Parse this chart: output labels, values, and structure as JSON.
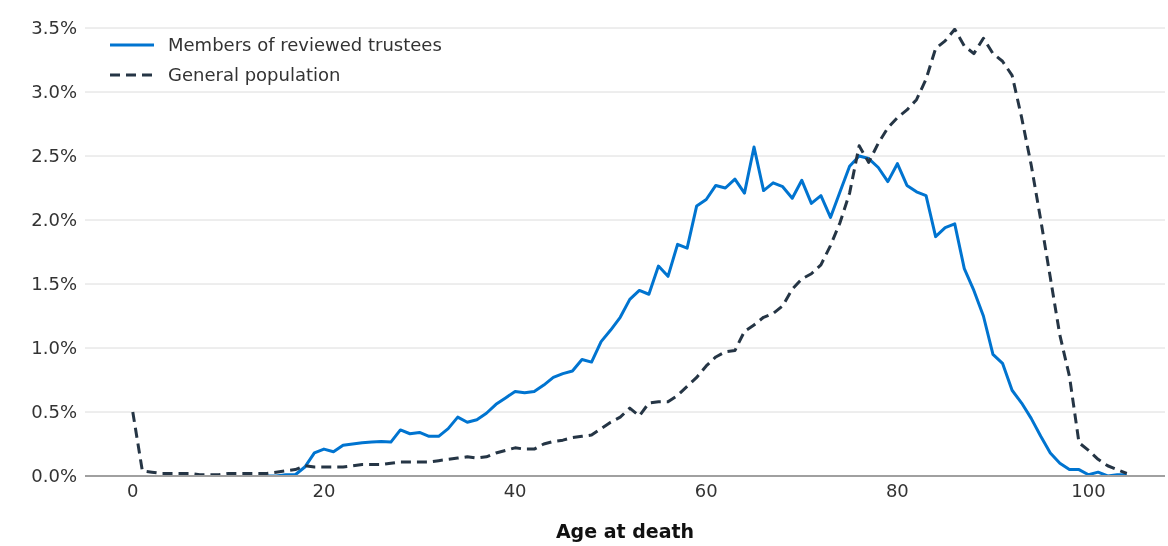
{
  "chart_data": {
    "type": "line",
    "xlabel": "Age at death",
    "x": [
      0,
      1,
      2,
      3,
      4,
      5,
      6,
      7,
      8,
      9,
      10,
      11,
      12,
      13,
      14,
      15,
      16,
      17,
      18,
      19,
      20,
      21,
      22,
      23,
      24,
      25,
      26,
      27,
      28,
      29,
      30,
      31,
      32,
      33,
      34,
      35,
      36,
      37,
      38,
      39,
      40,
      41,
      42,
      43,
      44,
      45,
      46,
      47,
      48,
      49,
      50,
      51,
      52,
      53,
      54,
      55,
      56,
      57,
      58,
      59,
      60,
      61,
      62,
      63,
      64,
      65,
      66,
      67,
      68,
      69,
      70,
      71,
      72,
      73,
      74,
      75,
      76,
      77,
      78,
      79,
      80,
      81,
      82,
      83,
      84,
      85,
      86,
      87,
      88,
      89,
      90,
      91,
      92,
      93,
      94,
      95,
      96,
      97,
      98,
      99,
      100,
      101,
      102,
      103,
      104
    ],
    "series": [
      {
        "name": "Members of reviewed trustees",
        "color": "#0074d0",
        "line_style": "solid",
        "values": [
          null,
          null,
          null,
          null,
          null,
          null,
          null,
          null,
          null,
          null,
          null,
          null,
          null,
          null,
          0.0,
          0.0,
          0.01,
          0.01,
          0.07,
          0.18,
          0.21,
          0.19,
          0.24,
          0.25,
          0.26,
          0.265,
          0.27,
          0.265,
          0.36,
          0.33,
          0.34,
          0.31,
          0.31,
          0.37,
          0.46,
          0.42,
          0.44,
          0.49,
          0.56,
          0.61,
          0.66,
          0.65,
          0.66,
          0.71,
          0.77,
          0.8,
          0.82,
          0.91,
          0.89,
          1.05,
          1.14,
          1.24,
          1.38,
          1.45,
          1.42,
          1.64,
          1.56,
          1.81,
          1.78,
          2.11,
          2.16,
          2.27,
          2.25,
          2.32,
          2.21,
          2.57,
          2.23,
          2.29,
          2.26,
          2.17,
          2.31,
          2.13,
          2.19,
          2.02,
          2.22,
          2.42,
          2.5,
          2.48,
          2.41,
          2.3,
          2.44,
          2.27,
          2.22,
          2.19,
          1.87,
          1.94,
          1.97,
          1.62,
          1.45,
          1.25,
          0.95,
          0.88,
          0.67,
          0.57,
          0.45,
          0.31,
          0.18,
          0.1,
          0.05,
          0.05,
          0.01,
          0.03,
          0.0,
          0.01,
          0.01
        ]
      },
      {
        "name": "General population",
        "color": "#253545",
        "line_style": "dashed",
        "values": [
          0.5,
          0.04,
          0.03,
          0.02,
          0.02,
          0.02,
          0.02,
          0.01,
          0.01,
          0.01,
          0.02,
          0.02,
          0.02,
          0.02,
          0.02,
          0.03,
          0.04,
          0.05,
          0.08,
          0.07,
          0.07,
          0.07,
          0.07,
          0.08,
          0.09,
          0.09,
          0.09,
          0.1,
          0.11,
          0.11,
          0.11,
          0.11,
          0.12,
          0.13,
          0.14,
          0.15,
          0.14,
          0.15,
          0.18,
          0.2,
          0.22,
          0.21,
          0.21,
          0.25,
          0.27,
          0.28,
          0.3,
          0.31,
          0.32,
          0.37,
          0.42,
          0.46,
          0.53,
          0.47,
          0.57,
          0.58,
          0.58,
          0.63,
          0.7,
          0.77,
          0.86,
          0.93,
          0.97,
          0.98,
          1.13,
          1.18,
          1.24,
          1.27,
          1.33,
          1.46,
          1.54,
          1.58,
          1.65,
          1.8,
          1.98,
          2.21,
          2.58,
          2.45,
          2.6,
          2.72,
          2.8,
          2.86,
          2.94,
          3.1,
          3.34,
          3.4,
          3.49,
          3.36,
          3.3,
          3.42,
          3.3,
          3.24,
          3.13,
          2.8,
          2.43,
          2.0,
          1.55,
          1.1,
          0.78,
          0.26,
          0.2,
          0.13,
          0.08,
          0.05,
          0.02
        ]
      }
    ],
    "xlim": [
      -5,
      108
    ],
    "xticks": [
      0,
      20,
      40,
      60,
      80,
      100
    ],
    "ylim": [
      0,
      3.5
    ],
    "yticks": [
      {
        "value": 0,
        "label": "0.0%"
      },
      {
        "value": 0.5,
        "label": "0.5%"
      },
      {
        "value": 1,
        "label": "1.0%"
      },
      {
        "value": 1.5,
        "label": "1.5%"
      },
      {
        "value": 2,
        "label": "2.0%"
      },
      {
        "value": 2.5,
        "label": "2.5%"
      },
      {
        "value": 3,
        "label": "3.0%"
      },
      {
        "value": 3.5,
        "label": "3.5%"
      }
    ],
    "grid": "y",
    "legend": "top left",
    "marker": "none"
  }
}
